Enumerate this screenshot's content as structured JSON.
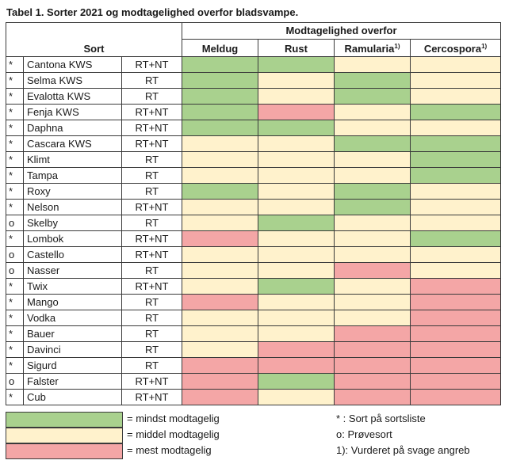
{
  "title": "Tabel 1. Sorter 2021 og modtagelighed overfor bladsvampe.",
  "header": {
    "sort": "Sort",
    "group": "Modtagelighed overfor",
    "columns": [
      {
        "label": "Meldug",
        "sup": ""
      },
      {
        "label": "Rust",
        "sup": ""
      },
      {
        "label": "Ramularia",
        "sup": "1)"
      },
      {
        "label": "Cercospora",
        "sup": "1)"
      }
    ]
  },
  "colors": {
    "g": "#a9d18e",
    "y": "#fff2cc",
    "r": "#f4a6a6"
  },
  "rows": [
    {
      "mark": "*",
      "name": "Cantona KWS",
      "type": "RT+NT",
      "cells": [
        "g",
        "g",
        "y",
        "y"
      ]
    },
    {
      "mark": "*",
      "name": "Selma KWS",
      "type": "RT",
      "cells": [
        "g",
        "y",
        "g",
        "y"
      ]
    },
    {
      "mark": "*",
      "name": "Evalotta KWS",
      "type": "RT",
      "cells": [
        "g",
        "y",
        "g",
        "y"
      ]
    },
    {
      "mark": "*",
      "name": "Fenja KWS",
      "type": "RT+NT",
      "cells": [
        "g",
        "r",
        "y",
        "g"
      ]
    },
    {
      "mark": "*",
      "name": "Daphna",
      "type": "RT+NT",
      "cells": [
        "g",
        "g",
        "y",
        "y"
      ]
    },
    {
      "mark": "*",
      "name": "Cascara KWS",
      "type": "RT+NT",
      "cells": [
        "y",
        "y",
        "g",
        "g"
      ]
    },
    {
      "mark": "*",
      "name": "Klimt",
      "type": "RT",
      "cells": [
        "y",
        "y",
        "y",
        "g"
      ]
    },
    {
      "mark": "*",
      "name": "Tampa",
      "type": "RT",
      "cells": [
        "y",
        "y",
        "y",
        "g"
      ]
    },
    {
      "mark": "*",
      "name": "Roxy",
      "type": "RT",
      "cells": [
        "g",
        "y",
        "g",
        "y"
      ]
    },
    {
      "mark": "*",
      "name": "Nelson",
      "type": "RT+NT",
      "cells": [
        "y",
        "y",
        "g",
        "y"
      ]
    },
    {
      "mark": "o",
      "name": "Skelby",
      "type": "RT",
      "cells": [
        "y",
        "g",
        "y",
        "y"
      ]
    },
    {
      "mark": "*",
      "name": "Lombok",
      "type": "RT+NT",
      "cells": [
        "r",
        "y",
        "y",
        "g"
      ]
    },
    {
      "mark": "o",
      "name": "Castello",
      "type": "RT+NT",
      "cells": [
        "y",
        "y",
        "y",
        "y"
      ]
    },
    {
      "mark": "o",
      "name": "Nasser",
      "type": "RT",
      "cells": [
        "y",
        "y",
        "r",
        "y"
      ]
    },
    {
      "mark": "*",
      "name": "Twix",
      "type": "RT+NT",
      "cells": [
        "y",
        "g",
        "y",
        "r"
      ]
    },
    {
      "mark": "*",
      "name": "Mango",
      "type": "RT",
      "cells": [
        "r",
        "y",
        "y",
        "r"
      ]
    },
    {
      "mark": "*",
      "name": "Vodka",
      "type": "RT",
      "cells": [
        "y",
        "y",
        "y",
        "r"
      ]
    },
    {
      "mark": "*",
      "name": "Bauer",
      "type": "RT",
      "cells": [
        "y",
        "y",
        "r",
        "r"
      ]
    },
    {
      "mark": "*",
      "name": "Davinci",
      "type": "RT",
      "cells": [
        "y",
        "r",
        "r",
        "r"
      ]
    },
    {
      "mark": "*",
      "name": "Sigurd",
      "type": "RT",
      "cells": [
        "r",
        "r",
        "r",
        "r"
      ]
    },
    {
      "mark": "o",
      "name": "Falster",
      "type": "RT+NT",
      "cells": [
        "r",
        "g",
        "r",
        "r"
      ]
    },
    {
      "mark": "*",
      "name": "Cub",
      "type": "RT+NT",
      "cells": [
        "r",
        "y",
        "r",
        "r"
      ]
    }
  ],
  "legend": [
    {
      "color": "g",
      "text": "= mindst modtagelig"
    },
    {
      "color": "y",
      "text": "= middel modtagelig"
    },
    {
      "color": "r",
      "text": "= mest modtagelig"
    }
  ],
  "notes": [
    "* : Sort på sortsliste",
    "o:  Prøvesort",
    "1): Vurderet på svage angreb"
  ]
}
